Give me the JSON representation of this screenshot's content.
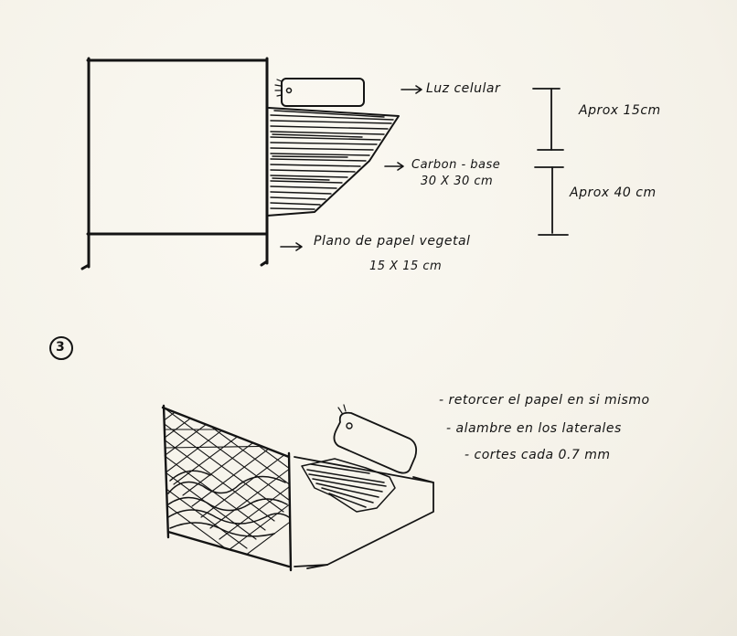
{
  "top_diagram": {
    "labels": {
      "light": "Luz celular",
      "carbon_line1": "Carbon - base",
      "carbon_line2": "30 X 30 cm",
      "paper_line1": "Plano de papel vegetal",
      "paper_line2": "15 X 15 cm"
    },
    "dimensions": {
      "upper": "Aprox 15cm",
      "lower": "Aprox 40 cm"
    }
  },
  "section_three": {
    "number": "3",
    "notes": [
      "- retorcer el papel en si mismo",
      "- alambre en los laterales",
      "- cortes cada 0.7 mm"
    ]
  },
  "colors": {
    "paper": "#f7f4ec",
    "ink": "#141414"
  }
}
